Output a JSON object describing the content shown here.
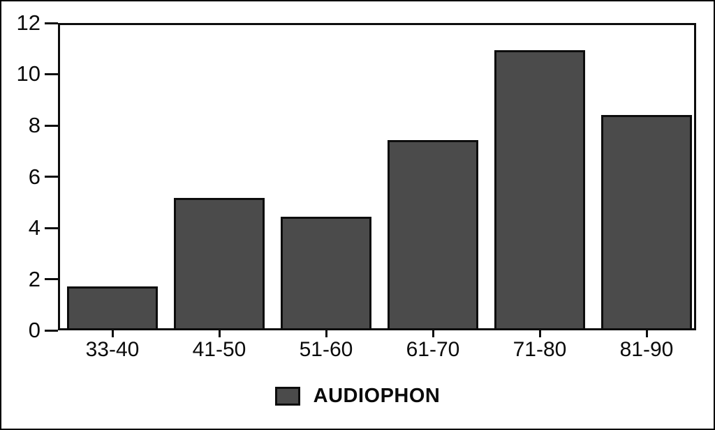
{
  "figure": {
    "background": "#ffffff",
    "frame_color": "#0d0d0d"
  },
  "chart_data": {
    "type": "bar",
    "title": "",
    "xlabel": "",
    "ylabel": "",
    "categories": [
      "33-40",
      "41-50",
      "51-60",
      "61-70",
      "71-80",
      "81-90"
    ],
    "values": [
      1.65,
      5.15,
      4.4,
      7.45,
      11.0,
      8.45
    ],
    "ylim": [
      0,
      12
    ],
    "yticks": [
      0,
      2,
      4,
      6,
      8,
      10,
      12
    ],
    "grid": false,
    "legend_label": "AUDIOPHON",
    "legend_position": "bottom-center",
    "bar_color": "#4b4b4b",
    "bar_border_color": "#0d0d0d",
    "axis_color": "#0a0a0a"
  }
}
